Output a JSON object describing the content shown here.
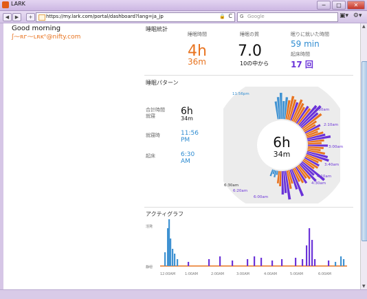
{
  "window": {
    "title": "LARK",
    "min": "─",
    "max": "□",
    "close": "✕"
  },
  "toolbar": {
    "back": "◀",
    "forward": "▶",
    "new_tab": "+",
    "url": "https://my.lark.com/portal/dashboard?lang=ja_jp",
    "lock": "🔒",
    "reload": "C",
    "search_icon": "G",
    "search_placeholder": "Google",
    "page_menu": "▣▾",
    "tools_menu": "⚙▾"
  },
  "header": {
    "greeting": "Good morning",
    "email": "ʃ⁓ʀᴦ⁓ʟʀᴋⁿ@nifty.com"
  },
  "stats": {
    "section_title": "睡眠統計",
    "sleep_time_label": "睡眠時間",
    "sleep_hours": "4h",
    "sleep_minutes": "36m",
    "quality_label": "睡眠の質",
    "quality_value": "7.0",
    "quality_sub": "10の中から",
    "fell_asleep_label": "眠りに就いた時間",
    "fell_asleep_value": "59 min",
    "woke_label": "起床時間",
    "woke_value": "17 回"
  },
  "pattern": {
    "section_title": "睡眠パターン",
    "total_label": "合計時間",
    "sleep_label": "就寝",
    "total_value": "6h",
    "total_sub": "34m",
    "bedtime_label": "就寝時",
    "bedtime_value": "11:56 PM",
    "wake_label": "起床",
    "wake_value": "6:30 AM",
    "center_main": "6h",
    "center_sub": "34m"
  },
  "activity": {
    "section_title": "アクティグラフ",
    "y_top": "活発",
    "y_bottom": "静穏",
    "x_labels": [
      "12:00AM",
      "1:00AM",
      "2:00AM",
      "3:00AM",
      "4:00AM",
      "5:00AM",
      "6:00AM"
    ]
  },
  "chart_data": {
    "type": "radial-bar",
    "time_labels": [
      "11:56pm",
      "1:30am",
      "2:10am",
      "3:00am",
      "3:40am",
      "4:10am",
      "4:30am",
      "6:00am",
      "6:20am",
      "6:30am"
    ],
    "label_colors": {
      "bedtime": "#2d8bd1",
      "sleep": "#6a32d8"
    },
    "phases": {
      "awake": "#3f92d2",
      "light": "#e8731f",
      "deep": "#6a32d8"
    }
  },
  "colors": {
    "accent": "#e8731f",
    "blue": "#2d8bd1",
    "purple": "#6a32d8"
  }
}
